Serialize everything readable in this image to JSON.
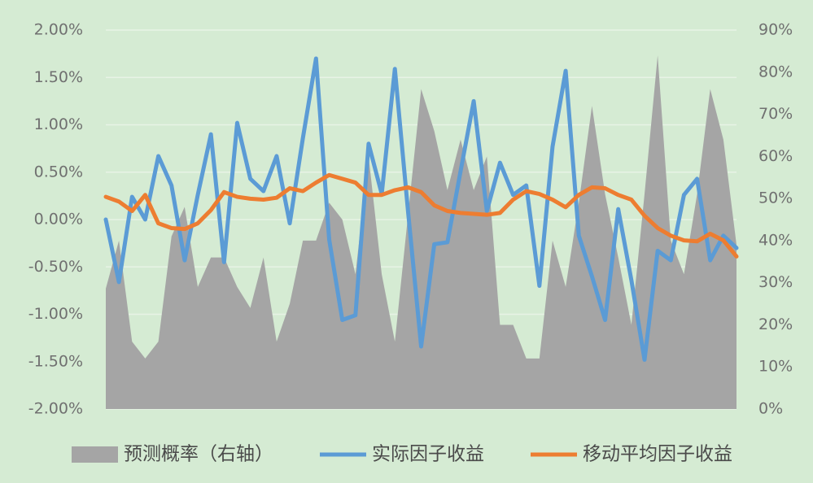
{
  "chart_data": {
    "type": "combo",
    "categories": [
      null,
      null,
      null,
      null,
      null,
      null,
      null,
      null,
      null,
      null,
      null,
      null,
      null,
      null,
      null,
      null,
      null,
      null,
      null,
      null,
      null,
      null,
      null,
      null,
      null,
      null,
      null,
      null,
      null,
      null,
      null,
      null,
      null,
      null,
      null,
      null,
      null,
      null,
      null,
      null,
      null,
      null,
      null,
      null,
      null,
      null,
      null,
      null,
      null
    ],
    "series": [
      {
        "name": "预测概率（右轴）",
        "type": "area",
        "axis": "y2",
        "color": "#a5a5a5",
        "values": [
          28.6,
          40,
          16,
          12,
          16,
          41,
          48,
          29,
          36,
          36,
          29,
          24,
          36,
          16,
          25,
          40,
          40,
          49,
          45,
          32,
          60,
          32,
          16,
          46,
          76,
          66,
          52,
          64,
          52,
          60,
          20,
          20,
          12,
          12,
          40,
          29,
          49,
          72,
          51,
          36,
          20,
          51,
          84,
          40,
          32,
          51,
          76,
          64,
          39
        ]
      },
      {
        "name": "实际因子收益",
        "type": "line",
        "color": "#5b9bd5",
        "values": [
          0.0,
          -0.66,
          0.24,
          0.0,
          0.67,
          0.36,
          -0.43,
          0.26,
          0.9,
          -0.45,
          1.02,
          0.43,
          0.3,
          0.67,
          -0.04,
          0.86,
          1.7,
          -0.21,
          -1.06,
          -1.01,
          0.8,
          0.27,
          1.59,
          0.09,
          -1.34,
          -0.26,
          -0.24,
          0.51,
          1.25,
          0.09,
          0.6,
          0.26,
          0.36,
          -0.7,
          0.77,
          1.57,
          -0.17,
          -0.6,
          -1.06,
          0.11,
          -0.64,
          -1.48,
          -0.33,
          -0.43,
          0.26,
          0.43,
          -0.43,
          -0.17,
          -0.3
        ]
      },
      {
        "name": "移动平均因子收益",
        "type": "line",
        "color": "#ed7d31",
        "values": [
          0.24,
          0.19,
          0.09,
          0.26,
          -0.04,
          -0.09,
          -0.1,
          -0.04,
          0.1,
          0.29,
          0.24,
          0.22,
          0.21,
          0.23,
          0.33,
          0.3,
          0.39,
          0.47,
          0.43,
          0.39,
          0.26,
          0.26,
          0.31,
          0.34,
          0.29,
          0.15,
          0.09,
          0.07,
          0.06,
          0.05,
          0.07,
          0.21,
          0.3,
          0.27,
          0.21,
          0.13,
          0.26,
          0.34,
          0.33,
          0.26,
          0.21,
          0.04,
          -0.09,
          -0.17,
          -0.22,
          -0.23,
          -0.15,
          -0.22,
          -0.39
        ]
      }
    ],
    "ylim": [
      -2,
      2
    ],
    "yticks": [
      {
        "value": -2,
        "label": "-2.00%"
      },
      {
        "value": -1.5,
        "label": "-1.50%"
      },
      {
        "value": -1,
        "label": "-1.00%"
      },
      {
        "value": -0.5,
        "label": "-0.50%"
      },
      {
        "value": 0,
        "label": "0.00%"
      },
      {
        "value": 0.5,
        "label": "0.50%"
      },
      {
        "value": 1,
        "label": "1.00%"
      },
      {
        "value": 1.5,
        "label": "1.50%"
      },
      {
        "value": 2,
        "label": "2.00%"
      }
    ],
    "y2lim": [
      0,
      90
    ],
    "y2ticks": [
      {
        "value": 0,
        "label": "0%"
      },
      {
        "value": 10,
        "label": "10%"
      },
      {
        "value": 20,
        "label": "20%"
      },
      {
        "value": 30,
        "label": "30%"
      },
      {
        "value": 40,
        "label": "40%"
      },
      {
        "value": 50,
        "label": "50%"
      },
      {
        "value": 60,
        "label": "60%"
      },
      {
        "value": 70,
        "label": "70%"
      },
      {
        "value": 80,
        "label": "80%"
      },
      {
        "value": 90,
        "label": "90%"
      }
    ],
    "grid": true,
    "legend": "bottom"
  }
}
